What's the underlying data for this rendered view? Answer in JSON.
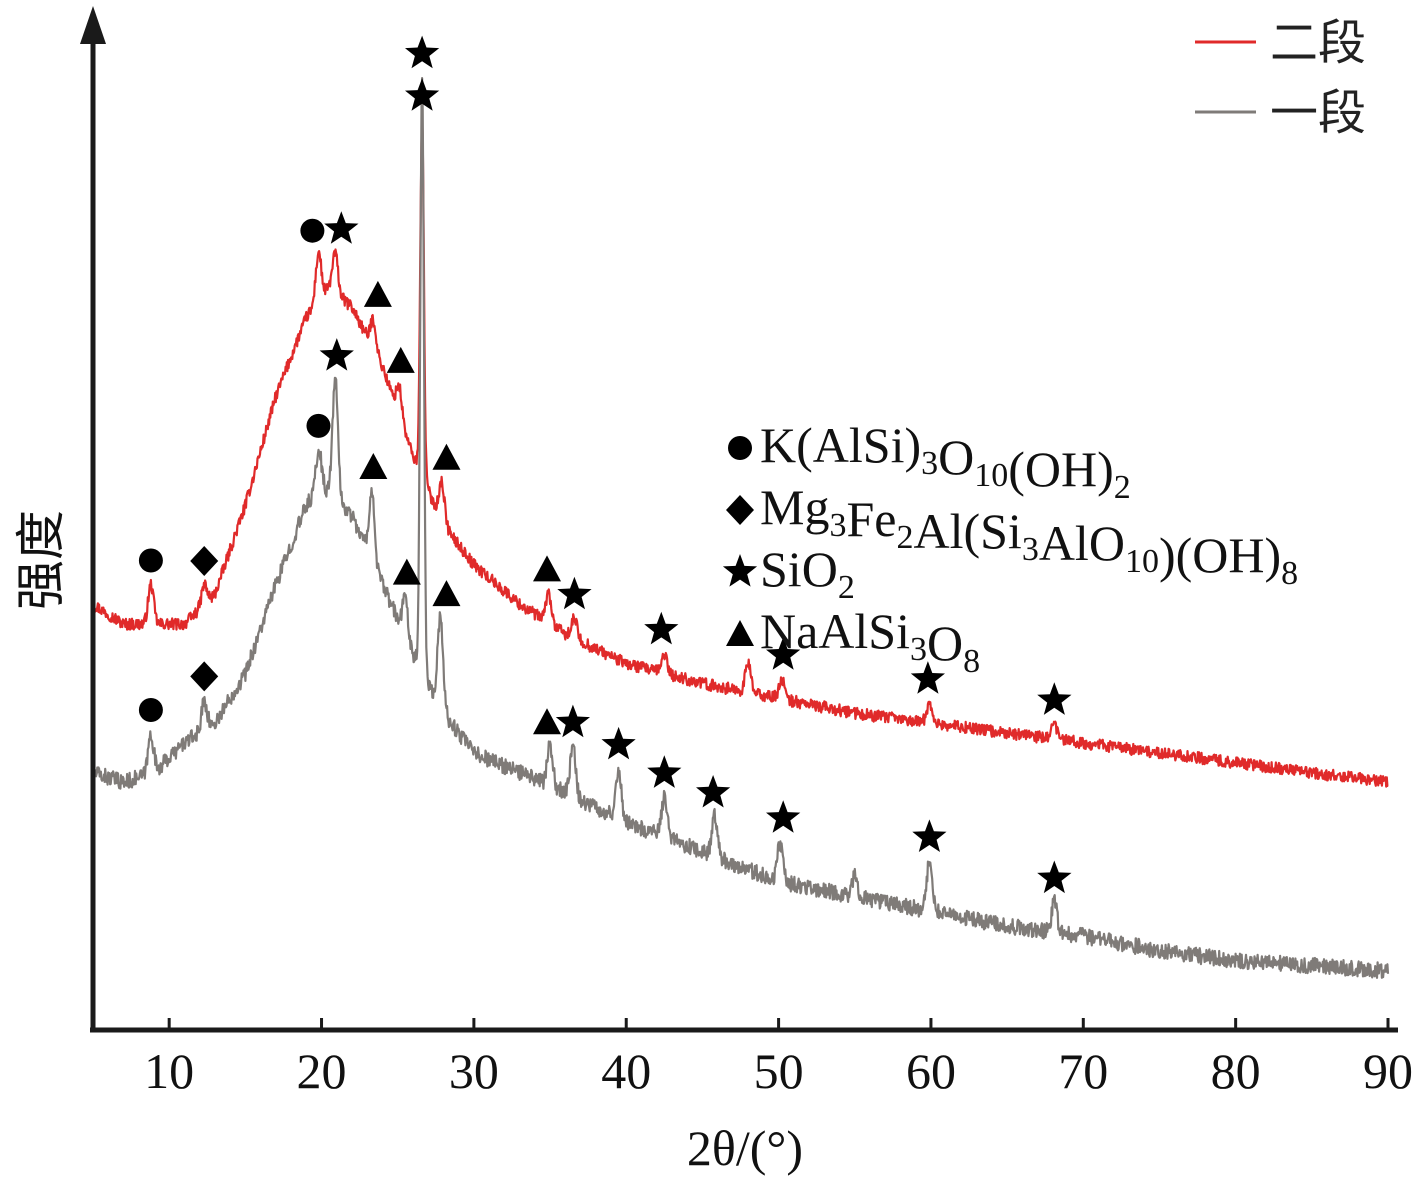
{
  "chart_data": {
    "type": "line",
    "title": "",
    "xlabel": "2θ/(°)",
    "ylabel": "强度",
    "xlim": [
      5,
      90
    ],
    "x_ticks": [
      10,
      20,
      30,
      40,
      50,
      60,
      70,
      80,
      90
    ],
    "x_tick_labels": [
      "10",
      "20",
      "30",
      "40",
      "50",
      "60",
      "70",
      "80",
      "90"
    ],
    "y_ticks": [],
    "legend_position": "top-right",
    "series": [
      {
        "name": "二段",
        "color": "#e02a2a",
        "baseline": [
          [
            5,
            0.43
          ],
          [
            7,
            0.41
          ],
          [
            9,
            0.41
          ],
          [
            11,
            0.41
          ],
          [
            13,
            0.44
          ],
          [
            15,
            0.53
          ],
          [
            17,
            0.64
          ],
          [
            19,
            0.72
          ],
          [
            20.5,
            0.75
          ],
          [
            22,
            0.73
          ],
          [
            24,
            0.67
          ],
          [
            26,
            0.58
          ],
          [
            28,
            0.51
          ],
          [
            30,
            0.47
          ],
          [
            33,
            0.43
          ],
          [
            36,
            0.4
          ],
          [
            40,
            0.37
          ],
          [
            45,
            0.35
          ],
          [
            50,
            0.335
          ],
          [
            55,
            0.32
          ],
          [
            60,
            0.31
          ],
          [
            65,
            0.3
          ],
          [
            70,
            0.29
          ],
          [
            75,
            0.28
          ],
          [
            80,
            0.27
          ],
          [
            85,
            0.26
          ],
          [
            90,
            0.25
          ]
        ],
        "peaks": [
          [
            8.8,
            0.04
          ],
          [
            12.3,
            0.02
          ],
          [
            19.8,
            0.05
          ],
          [
            20.9,
            0.04
          ],
          [
            23.4,
            0.03
          ],
          [
            25.1,
            0.03
          ],
          [
            26.6,
            0.36
          ],
          [
            27.9,
            0.04
          ],
          [
            34.9,
            0.03
          ],
          [
            36.6,
            0.02
          ],
          [
            42.5,
            0.02
          ],
          [
            48,
            0.03
          ],
          [
            50.2,
            0.02
          ],
          [
            59.9,
            0.02
          ],
          [
            68.1,
            0.015
          ]
        ],
        "noise": 0.006
      },
      {
        "name": "一段",
        "color": "#7f7b78",
        "baseline": [
          [
            5,
            0.26
          ],
          [
            7,
            0.25
          ],
          [
            9,
            0.26
          ],
          [
            11,
            0.29
          ],
          [
            13,
            0.31
          ],
          [
            15,
            0.36
          ],
          [
            17,
            0.45
          ],
          [
            19,
            0.53
          ],
          [
            20,
            0.55
          ],
          [
            22,
            0.52
          ],
          [
            24,
            0.45
          ],
          [
            26,
            0.38
          ],
          [
            28,
            0.32
          ],
          [
            30,
            0.28
          ],
          [
            33,
            0.26
          ],
          [
            36,
            0.24
          ],
          [
            40,
            0.21
          ],
          [
            45,
            0.18
          ],
          [
            50,
            0.15
          ],
          [
            55,
            0.135
          ],
          [
            60,
            0.12
          ],
          [
            65,
            0.105
          ],
          [
            70,
            0.095
          ],
          [
            75,
            0.08
          ],
          [
            80,
            0.07
          ],
          [
            85,
            0.065
          ],
          [
            90,
            0.06
          ]
        ],
        "peaks": [
          [
            8.8,
            0.04
          ],
          [
            12.3,
            0.03
          ],
          [
            19.8,
            0.04
          ],
          [
            20.9,
            0.12
          ],
          [
            23.3,
            0.07
          ],
          [
            25.5,
            0.04
          ],
          [
            26.6,
            0.6
          ],
          [
            27.8,
            0.09
          ],
          [
            35,
            0.04
          ],
          [
            36.5,
            0.05
          ],
          [
            39.5,
            0.05
          ],
          [
            42.5,
            0.04
          ],
          [
            45.8,
            0.04
          ],
          [
            50.1,
            0.04
          ],
          [
            55,
            0.02
          ],
          [
            59.9,
            0.05
          ],
          [
            68.1,
            0.03
          ]
        ],
        "noise": 0.008
      }
    ],
    "markers": [
      {
        "shape": "circle",
        "series": "二段",
        "x": 8.8
      },
      {
        "shape": "diamond",
        "series": "二段",
        "x": 12.3
      },
      {
        "shape": "circle",
        "series": "二段",
        "x": 19.4
      },
      {
        "shape": "star",
        "series": "二段",
        "x": 21.3
      },
      {
        "shape": "triangle",
        "series": "二段",
        "x": 23.7
      },
      {
        "shape": "triangle",
        "series": "二段",
        "x": 25.2
      },
      {
        "shape": "star",
        "series": "二段",
        "x": 26.6
      },
      {
        "shape": "triangle",
        "series": "二段",
        "x": 28.2
      },
      {
        "shape": "triangle",
        "series": "二段",
        "x": 34.8
      },
      {
        "shape": "star",
        "series": "二段",
        "x": 36.6
      },
      {
        "shape": "star",
        "series": "二段",
        "x": 42.3
      },
      {
        "shape": "star",
        "series": "二段",
        "x": 50.3
      },
      {
        "shape": "star",
        "series": "二段",
        "x": 59.8
      },
      {
        "shape": "star",
        "series": "二段",
        "x": 68.1
      },
      {
        "shape": "circle",
        "series": "一段",
        "x": 8.8
      },
      {
        "shape": "diamond",
        "series": "一段",
        "x": 12.3
      },
      {
        "shape": "circle",
        "series": "一段",
        "x": 19.8
      },
      {
        "shape": "star",
        "series": "一段",
        "x": 21
      },
      {
        "shape": "triangle",
        "series": "一段",
        "x": 23.4
      },
      {
        "shape": "triangle",
        "series": "一段",
        "x": 25.6
      },
      {
        "shape": "star",
        "series": "一段",
        "x": 26.6
      },
      {
        "shape": "triangle",
        "series": "一段",
        "x": 28.2
      },
      {
        "shape": "triangle",
        "series": "一段",
        "x": 34.8
      },
      {
        "shape": "star",
        "series": "一段",
        "x": 36.5
      },
      {
        "shape": "star",
        "series": "一段",
        "x": 39.5
      },
      {
        "shape": "star",
        "series": "一段",
        "x": 42.5
      },
      {
        "shape": "star",
        "series": "一段",
        "x": 45.7
      },
      {
        "shape": "star",
        "series": "一段",
        "x": 50.3
      },
      {
        "shape": "star",
        "series": "一段",
        "x": 59.9
      },
      {
        "shape": "star",
        "series": "一段",
        "x": 68.1
      }
    ],
    "phase_legend": [
      {
        "shape": "circle",
        "parts": [
          [
            "K(AlSi)",
            ""
          ],
          [
            "3",
            "sub"
          ],
          [
            "O",
            ""
          ],
          [
            "10",
            "sub"
          ],
          [
            "(OH)",
            ""
          ],
          [
            "2",
            "sub"
          ]
        ]
      },
      {
        "shape": "diamond",
        "parts": [
          [
            "Mg",
            ""
          ],
          [
            "3",
            "sub"
          ],
          [
            "Fe",
            ""
          ],
          [
            "2",
            "sub"
          ],
          [
            "Al(Si",
            ""
          ],
          [
            "3",
            "sub"
          ],
          [
            "AlO",
            ""
          ],
          [
            "10",
            "sub"
          ],
          [
            ")(OH)",
            ""
          ],
          [
            "8",
            "sub"
          ]
        ]
      },
      {
        "shape": "star",
        "parts": [
          [
            "SiO",
            ""
          ],
          [
            "2",
            "sub"
          ]
        ]
      },
      {
        "shape": "triangle",
        "parts": [
          [
            "NaAlSi",
            ""
          ],
          [
            "3",
            "sub"
          ],
          [
            "O",
            ""
          ],
          [
            "8",
            "sub"
          ]
        ]
      }
    ]
  }
}
